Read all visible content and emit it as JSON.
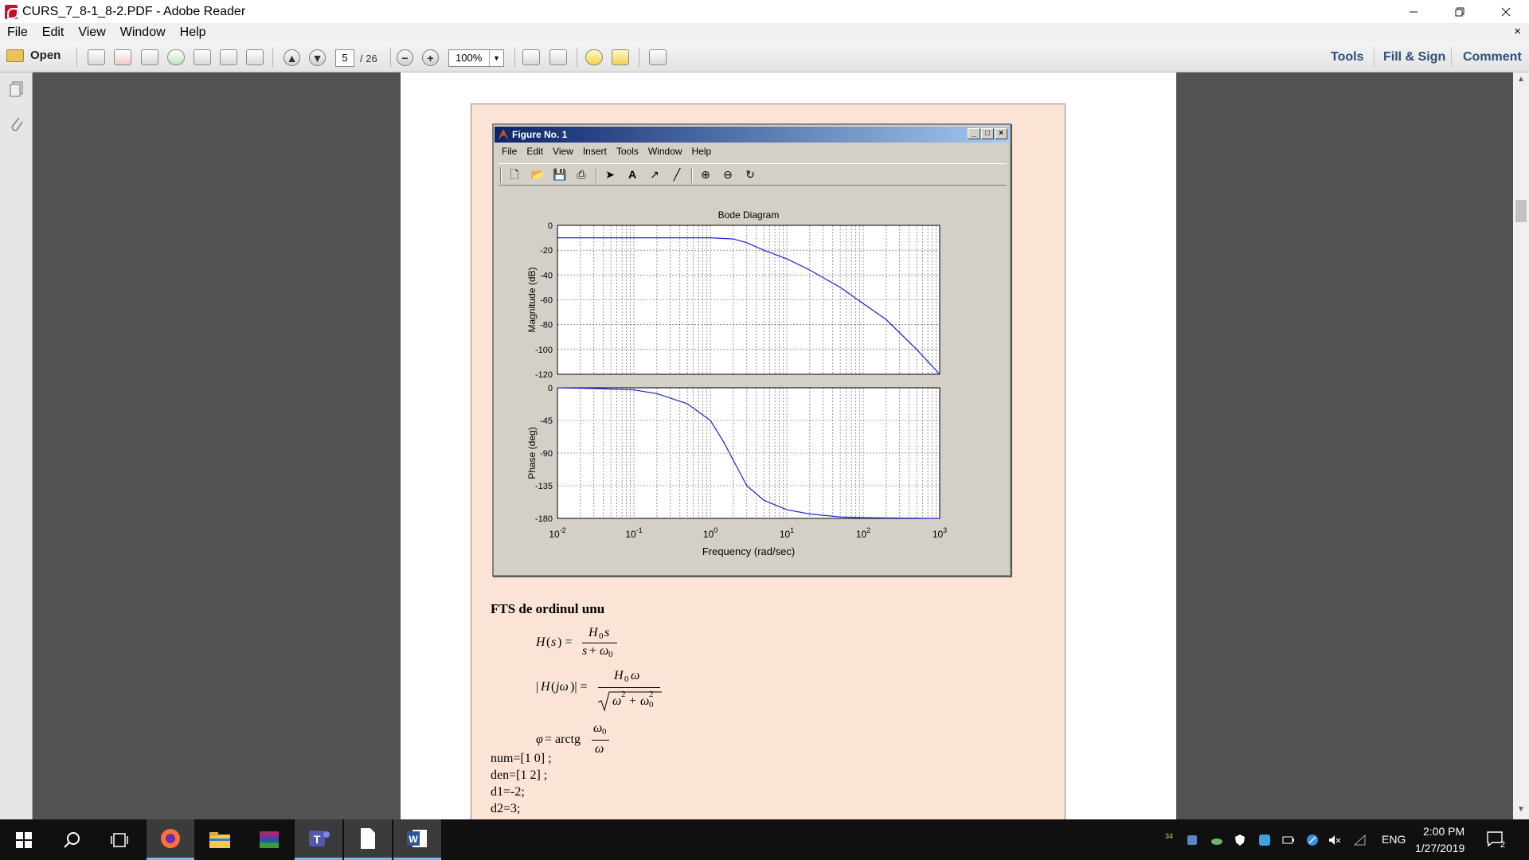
{
  "window": {
    "title": "CURS_7_8-1_8-2.PDF - Adobe Reader",
    "controls": [
      "minimize",
      "restore",
      "close"
    ]
  },
  "menu": {
    "items": [
      "File",
      "Edit",
      "View",
      "Window",
      "Help"
    ],
    "close_glyph": "×"
  },
  "toolbar": {
    "open_label": "Open",
    "page_current": "5",
    "page_total": "/ 26",
    "zoom_value": "100%",
    "tools_label": "Tools",
    "fill_sign_label": "Fill & Sign",
    "comment_label": "Comment"
  },
  "figure": {
    "window_title": "Figure No. 1",
    "menu": [
      "File",
      "Edit",
      "View",
      "Insert",
      "Tools",
      "Window",
      "Help"
    ],
    "chart_data": [
      {
        "type": "line",
        "title": "Bode Diagram",
        "xlabel": "",
        "ylabel": "Magnitude (dB)",
        "xscale": "log",
        "xlim": [
          0.01,
          1000
        ],
        "ylim": [
          -120,
          0
        ],
        "yticks": [
          "0",
          "-20",
          "-40",
          "-60",
          "-80",
          "-100",
          "-120"
        ],
        "grid": true,
        "series": [
          {
            "color": "#1f1fd6",
            "x": [
              0.01,
              0.1,
              1,
              2,
              3,
              5,
              10,
              20,
              50,
              100,
              200,
              500,
              1000
            ],
            "y": [
              -10,
              -10,
              -10,
              -11,
              -14,
              -20,
              -27,
              -36,
              -50,
              -63,
              -76,
              -100,
              -120
            ]
          }
        ]
      },
      {
        "type": "line",
        "title": "",
        "xlabel": "Frequency  (rad/sec)",
        "ylabel": "Phase (deg)",
        "xscale": "log",
        "xlim": [
          0.01,
          1000
        ],
        "ylim": [
          -180,
          0
        ],
        "yticks": [
          "0",
          "-45",
          "-90",
          "-135",
          "-180"
        ],
        "xticks": [
          "10-2",
          "10-1",
          "100",
          "101",
          "102",
          "103"
        ],
        "grid": true,
        "series": [
          {
            "color": "#1f1fd6",
            "x": [
              0.01,
              0.03,
              0.1,
              0.2,
              0.5,
              1,
              1.5,
              2,
              3,
              5,
              10,
              20,
              50,
              100,
              1000
            ],
            "y": [
              0,
              -1,
              -3,
              -8,
              -22,
              -45,
              -75,
              -100,
              -135,
              -155,
              -168,
              -174,
              -178,
              -179,
              -180
            ]
          }
        ]
      }
    ]
  },
  "document": {
    "heading": "FTS de ordinul unu",
    "code_lines": [
      "num=[1 0] ;",
      "den=[1 2] ;",
      "d1=-2;",
      "d2=3;"
    ]
  },
  "taskbar": {
    "badge": "34",
    "lang": "ENG",
    "time": "2:00 PM",
    "date": "1/27/2019",
    "notification_count": "2"
  }
}
